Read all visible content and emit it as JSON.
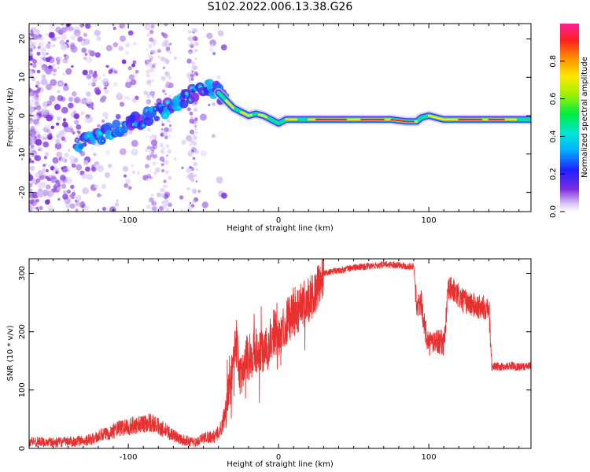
{
  "figure_title": "S102.2022.006.13.38.G26",
  "colors": {
    "snr_line": "#e83030",
    "frame": "#000000"
  },
  "chart_data": [
    {
      "type": "heatmap",
      "title": "",
      "xlabel": "Height of straight line (km)",
      "ylabel": "Frequency (Hz)",
      "xlim": [
        -166,
        168
      ],
      "ylim": [
        -25,
        24
      ],
      "xticks": [
        -100,
        0,
        100
      ],
      "yticks": [
        -20,
        -10,
        0,
        10,
        20
      ],
      "colormap": "rainbow (white-purple-blue-cyan-green-yellow-red-pink)",
      "colorbar": {
        "label": "Normalized spectral amplitude",
        "range": [
          0,
          1
        ],
        "ticks": [
          "0.0",
          "0.2",
          "0.4",
          "0.6",
          "0.8"
        ]
      },
      "ridge": {
        "x": [
          -130,
          -110,
          -90,
          -70,
          -60,
          -50,
          -45,
          -40,
          -35,
          -30,
          -25,
          -20,
          -15,
          -10,
          -5,
          0,
          5,
          10,
          20,
          40,
          60,
          75,
          85,
          92,
          95,
          100,
          110,
          120,
          140,
          160,
          168
        ],
        "y": [
          -7,
          -4,
          -1,
          3,
          5,
          7,
          8,
          6,
          4,
          2,
          1,
          0,
          0.5,
          0,
          -1,
          -2,
          -1,
          -1,
          -1,
          -1,
          -1,
          -1,
          -1.5,
          -1.5,
          -0.5,
          0,
          -1,
          -1,
          -1,
          -1,
          -1
        ]
      },
      "grid": false
    },
    {
      "type": "line",
      "title": "",
      "xlabel": "Height of straight line (km)",
      "ylabel": "SNR (10 * v/v)",
      "xlim": [
        -166,
        168
      ],
      "ylim": [
        0,
        325
      ],
      "xticks": [
        -100,
        0,
        100
      ],
      "yticks": [
        0,
        100,
        200,
        300
      ],
      "series": [
        {
          "x": [
            -166,
            -150,
            -135,
            -125,
            -115,
            -105,
            -95,
            -85,
            -75,
            -65,
            -55,
            -48,
            -42,
            -38,
            -34,
            -31,
            -28,
            -26,
            -22,
            -18,
            -14,
            -10,
            -6,
            -3,
            0,
            3,
            6,
            10,
            14,
            18,
            22,
            26,
            30,
            40,
            50,
            60,
            70,
            80,
            85,
            90,
            92,
            95,
            97,
            100,
            105,
            110,
            113,
            115,
            118,
            122,
            126,
            130,
            135,
            140,
            142,
            145,
            150,
            155,
            160,
            165,
            168
          ],
          "y": [
            12,
            10,
            12,
            15,
            25,
            35,
            40,
            45,
            30,
            15,
            10,
            20,
            20,
            35,
            80,
            130,
            180,
            120,
            150,
            160,
            170,
            160,
            180,
            200,
            190,
            210,
            220,
            230,
            240,
            250,
            260,
            280,
            300,
            305,
            310,
            312,
            315,
            315,
            312,
            312,
            240,
            250,
            210,
            180,
            185,
            180,
            270,
            275,
            265,
            255,
            250,
            245,
            240,
            245,
            140,
            140,
            140,
            142,
            140,
            140,
            142
          ]
        }
      ],
      "grid": false
    }
  ]
}
